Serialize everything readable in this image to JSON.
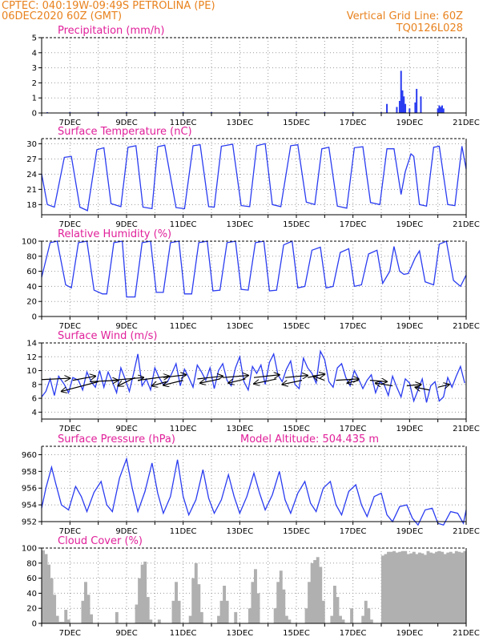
{
  "header": {
    "line1_left": "CPTEC:   040:19W-09:49S  PETROLINA (PE)",
    "line2_left": "06DEC2020 60Z (GMT)",
    "line1_right": "Vertical Grid Line: 60Z",
    "line2_right": "TQ0126L028"
  },
  "colors": {
    "header": "#e8821e",
    "title": "#e0209a",
    "series": "#2a3cf0",
    "cloud": "#b0b0b0",
    "wind_vector": "#000000"
  },
  "x_axis": {
    "start_day": 6,
    "end_day": 21,
    "tick_labels": [
      "7DEC",
      "9DEC",
      "11DEC",
      "13DEC",
      "15DEC",
      "17DEC",
      "19DEC",
      "21DEC"
    ]
  },
  "chart_data": [
    {
      "type": "bar",
      "title": "Precipitation (mm/h)",
      "ylim": [
        0,
        5
      ],
      "yticks": [
        0,
        1,
        2,
        3,
        4,
        5
      ],
      "x": [
        6.2,
        7.0,
        8.0,
        9.0,
        10.0,
        11.0,
        12.0,
        13.0,
        14.0,
        15.0,
        16.0,
        17.0,
        18.0,
        18.2,
        18.55,
        18.65,
        18.7,
        18.75,
        18.8,
        18.85,
        19.0,
        19.2,
        19.25,
        19.4,
        20.0,
        20.05,
        20.1,
        20.15,
        20.2
      ],
      "values": [
        0.05,
        0.05,
        0.05,
        0.05,
        0.05,
        0.05,
        0.05,
        0.05,
        0.05,
        0.05,
        0.05,
        0.05,
        0.05,
        0.6,
        0.4,
        0.8,
        2.8,
        1.5,
        1.1,
        0.6,
        0.3,
        0.7,
        1.6,
        1.1,
        0.3,
        0.5,
        0.4,
        0.5,
        0.3
      ]
    },
    {
      "type": "line",
      "title": "Surface Temperature (nC)",
      "ylim": [
        16,
        31
      ],
      "yticks": [
        18,
        21,
        24,
        27,
        30
      ],
      "x": [
        6.0,
        6.2,
        6.45,
        6.8,
        7.05,
        7.35,
        7.62,
        7.95,
        8.2,
        8.45,
        8.8,
        9.05,
        9.33,
        9.58,
        9.9,
        10.1,
        10.35,
        10.75,
        11.05,
        11.35,
        11.6,
        11.9,
        12.1,
        12.35,
        12.75,
        13.05,
        13.35,
        13.6,
        13.9,
        14.15,
        14.45,
        14.8,
        15.05,
        15.35,
        15.65,
        15.9,
        16.15,
        16.45,
        16.78,
        17.05,
        17.35,
        17.62,
        17.95,
        18.2,
        18.45,
        18.7,
        18.85,
        19.05,
        19.15,
        19.35,
        19.6,
        19.85,
        20.05,
        20.35,
        20.6,
        20.85,
        21.0
      ],
      "values": [
        24.0,
        18.0,
        17.5,
        27.3,
        27.5,
        17.5,
        16.8,
        28.8,
        29.2,
        18.2,
        17.6,
        29.3,
        29.6,
        17.5,
        17.2,
        29.4,
        29.7,
        17.4,
        17.2,
        29.6,
        29.8,
        17.6,
        17.5,
        29.5,
        29.9,
        17.8,
        17.6,
        29.6,
        30.0,
        18.0,
        17.6,
        29.6,
        29.8,
        18.5,
        18.0,
        29.0,
        29.3,
        17.7,
        17.3,
        29.2,
        29.4,
        18.4,
        18.0,
        29.0,
        29.0,
        20.0,
        24.5,
        28.0,
        27.5,
        18.0,
        17.7,
        29.3,
        29.5,
        18.0,
        17.8,
        29.5,
        25.0
      ]
    },
    {
      "type": "line",
      "title": "Relative Humidity (%)",
      "ylim": [
        0,
        100
      ],
      "yticks": [
        0,
        20,
        40,
        60,
        80,
        100
      ],
      "x": [
        6.0,
        6.3,
        6.55,
        6.85,
        7.05,
        7.3,
        7.6,
        7.85,
        8.15,
        8.3,
        8.55,
        8.85,
        9.0,
        9.3,
        9.55,
        9.85,
        10.05,
        10.3,
        10.55,
        10.85,
        11.05,
        11.3,
        11.55,
        11.85,
        12.05,
        12.3,
        12.55,
        12.85,
        13.05,
        13.3,
        13.55,
        13.85,
        14.05,
        14.3,
        14.55,
        14.85,
        15.05,
        15.3,
        15.55,
        15.85,
        16.05,
        16.3,
        16.55,
        16.85,
        17.05,
        17.3,
        17.55,
        17.85,
        18.05,
        18.3,
        18.45,
        18.65,
        18.8,
        18.95,
        19.05,
        19.2,
        19.35,
        19.55,
        19.85,
        20.05,
        20.3,
        20.55,
        20.8,
        21.0
      ],
      "values": [
        52,
        98,
        100,
        42,
        38,
        98,
        100,
        35,
        30,
        30,
        98,
        100,
        26,
        26,
        98,
        100,
        32,
        32,
        98,
        100,
        30,
        30,
        98,
        100,
        34,
        35,
        98,
        100,
        36,
        35,
        98,
        100,
        34,
        35,
        95,
        100,
        38,
        40,
        88,
        92,
        38,
        40,
        85,
        90,
        40,
        42,
        83,
        88,
        44,
        60,
        93,
        60,
        56,
        57,
        65,
        78,
        87,
        46,
        42,
        96,
        100,
        48,
        40,
        55
      ]
    },
    {
      "type": "line",
      "title": "Surface Wind (m/s)",
      "ylim": [
        3,
        14
      ],
      "yticks": [
        4,
        6,
        8,
        10,
        12,
        14
      ],
      "x": [
        6.0,
        6.15,
        6.3,
        6.45,
        6.6,
        6.8,
        6.95,
        7.1,
        7.3,
        7.45,
        7.6,
        7.75,
        7.9,
        8.05,
        8.2,
        8.35,
        8.5,
        8.65,
        8.8,
        8.95,
        9.1,
        9.25,
        9.4,
        9.55,
        9.7,
        9.85,
        10.0,
        10.15,
        10.3,
        10.45,
        10.6,
        10.75,
        10.9,
        11.05,
        11.2,
        11.35,
        11.5,
        11.65,
        11.8,
        11.95,
        12.1,
        12.25,
        12.4,
        12.55,
        12.7,
        12.85,
        13.0,
        13.15,
        13.3,
        13.45,
        13.6,
        13.75,
        13.9,
        14.05,
        14.2,
        14.35,
        14.5,
        14.65,
        14.8,
        14.95,
        15.1,
        15.25,
        15.4,
        15.55,
        15.7,
        15.85,
        16.0,
        16.15,
        16.3,
        16.45,
        16.6,
        16.75,
        16.9,
        17.05,
        17.2,
        17.35,
        17.5,
        17.65,
        17.8,
        17.95,
        18.1,
        18.25,
        18.4,
        18.55,
        18.7,
        18.85,
        19.0,
        19.15,
        19.3,
        19.45,
        19.6,
        19.75,
        19.9,
        20.05,
        20.2,
        20.35,
        20.5,
        20.65,
        20.8,
        20.95
      ],
      "values": [
        6.2,
        7.0,
        8.8,
        6.4,
        9.2,
        8.0,
        6.8,
        9.0,
        8.6,
        7.2,
        9.8,
        8.4,
        7.6,
        10.0,
        7.6,
        9.8,
        8.4,
        6.8,
        10.4,
        8.8,
        7.0,
        9.6,
        12.4,
        7.8,
        8.8,
        7.2,
        10.4,
        9.0,
        8.0,
        8.4,
        9.6,
        11.0,
        7.8,
        10.2,
        9.0,
        7.6,
        10.8,
        9.8,
        8.6,
        10.4,
        7.4,
        10.0,
        11.0,
        8.6,
        7.8,
        10.4,
        12.0,
        8.4,
        7.2,
        10.6,
        9.6,
        10.8,
        8.0,
        11.2,
        12.4,
        9.4,
        8.4,
        10.2,
        11.4,
        8.0,
        7.4,
        11.8,
        10.4,
        9.6,
        8.2,
        12.8,
        11.6,
        8.4,
        7.6,
        10.4,
        11.0,
        9.0,
        7.8,
        10.0,
        8.8,
        7.4,
        8.6,
        9.4,
        6.8,
        8.4,
        8.0,
        6.4,
        9.2,
        7.6,
        6.2,
        8.8,
        8.2,
        5.6,
        7.2,
        8.8,
        5.4,
        7.8,
        8.4,
        5.6,
        6.2,
        9.0,
        7.6,
        9.2,
        10.6,
        8.2
      ],
      "arrows": [
        {
          "x": 6.0,
          "y": 8.7,
          "x2": 7.0,
          "y2": 8.9
        },
        {
          "x": 7.1,
          "y": 8.6,
          "x2": 7.9,
          "y2": 9.2
        },
        {
          "x": 7.7,
          "y": 8.4,
          "x2": 8.7,
          "y2": 8.6
        },
        {
          "x": 8.0,
          "y": 8.4,
          "x2": 6.7,
          "y2": 7.0
        },
        {
          "x": 8.5,
          "y": 8.6,
          "x2": 9.6,
          "y2": 9.0
        },
        {
          "x": 9.3,
          "y": 9.0,
          "x2": 8.7,
          "y2": 7.8
        },
        {
          "x": 9.4,
          "y": 8.6,
          "x2": 10.5,
          "y2": 9.2
        },
        {
          "x": 10.4,
          "y": 8.4,
          "x2": 9.9,
          "y2": 7.8
        },
        {
          "x": 10.3,
          "y": 9.0,
          "x2": 11.1,
          "y2": 9.4
        },
        {
          "x": 11.0,
          "y": 8.6,
          "x2": 10.3,
          "y2": 7.9
        },
        {
          "x": 11.5,
          "y": 8.8,
          "x2": 12.4,
          "y2": 9.2
        },
        {
          "x": 12.3,
          "y": 8.8,
          "x2": 11.6,
          "y2": 8.2
        },
        {
          "x": 12.4,
          "y": 9.0,
          "x2": 13.3,
          "y2": 9.3
        },
        {
          "x": 13.2,
          "y": 8.8,
          "x2": 12.6,
          "y2": 8.2
        },
        {
          "x": 13.5,
          "y": 9.0,
          "x2": 14.4,
          "y2": 9.4
        },
        {
          "x": 14.3,
          "y": 8.8,
          "x2": 13.5,
          "y2": 8.1
        },
        {
          "x": 14.6,
          "y": 9.0,
          "x2": 15.4,
          "y2": 9.3
        },
        {
          "x": 15.2,
          "y": 8.6,
          "x2": 14.5,
          "y2": 8.0
        },
        {
          "x": 15.4,
          "y": 9.0,
          "x2": 16.0,
          "y2": 9.5
        },
        {
          "x": 16.0,
          "y": 8.6,
          "x2": 15.6,
          "y2": 9.2
        },
        {
          "x": 16.4,
          "y": 8.6,
          "x2": 17.2,
          "y2": 8.8
        },
        {
          "x": 17.2,
          "y": 8.6,
          "x2": 16.8,
          "y2": 8.2
        },
        {
          "x": 17.6,
          "y": 8.6,
          "x2": 18.2,
          "y2": 8.4
        },
        {
          "x": 18.4,
          "y": 7.8,
          "x2": 17.8,
          "y2": 8.2
        },
        {
          "x": 18.9,
          "y": 7.8,
          "x2": 19.4,
          "y2": 8.0
        },
        {
          "x": 19.7,
          "y": 7.2,
          "x2": 19.2,
          "y2": 7.6
        },
        {
          "x": 20.0,
          "y": 7.6,
          "x2": 20.4,
          "y2": 8.0
        }
      ]
    },
    {
      "type": "line",
      "title": "Surface Pressure (hPa)",
      "annotation": "Model Altitude: 504.435 m",
      "ylim": [
        952,
        961
      ],
      "yticks": [
        952,
        954,
        956,
        958,
        960
      ],
      "x": [
        6.0,
        6.15,
        6.35,
        6.5,
        6.7,
        6.95,
        7.2,
        7.4,
        7.6,
        7.85,
        8.1,
        8.3,
        8.5,
        8.75,
        9.0,
        9.2,
        9.4,
        9.65,
        9.9,
        10.1,
        10.3,
        10.55,
        10.8,
        11.0,
        11.2,
        11.45,
        11.7,
        11.9,
        12.1,
        12.35,
        12.6,
        12.8,
        13.0,
        13.25,
        13.5,
        13.7,
        13.9,
        14.15,
        14.4,
        14.6,
        14.8,
        15.05,
        15.3,
        15.5,
        15.7,
        15.95,
        16.2,
        16.4,
        16.6,
        16.85,
        17.1,
        17.3,
        17.5,
        17.75,
        18.0,
        18.2,
        18.4,
        18.65,
        18.9,
        19.1,
        19.3,
        19.55,
        19.8,
        20.0,
        20.2,
        20.45,
        20.7,
        20.9,
        21.0
      ],
      "values": [
        953.6,
        956.0,
        958.5,
        956.5,
        954.0,
        953.4,
        956.2,
        955.0,
        953.2,
        955.5,
        956.8,
        954.0,
        953.2,
        957.2,
        959.5,
        956.0,
        953.2,
        955.6,
        959.0,
        955.4,
        953.0,
        955.0,
        959.4,
        955.0,
        952.8,
        954.6,
        958.2,
        954.8,
        953.0,
        954.6,
        957.6,
        955.0,
        953.0,
        955.0,
        957.8,
        955.4,
        953.4,
        955.2,
        958.0,
        954.6,
        953.0,
        955.4,
        956.8,
        954.2,
        953.2,
        956.0,
        956.8,
        954.0,
        952.8,
        955.6,
        956.4,
        954.0,
        952.6,
        955.0,
        955.4,
        952.8,
        952.0,
        953.8,
        954.0,
        952.4,
        951.6,
        953.4,
        953.6,
        951.8,
        951.6,
        953.2,
        953.0,
        951.8,
        953.4
      ]
    },
    {
      "type": "bar",
      "title": "Cloud Cover (%)",
      "ylim": [
        0,
        100
      ],
      "yticks": [
        0,
        20,
        40,
        60,
        80,
        100
      ],
      "x": [
        6.0,
        6.1,
        6.2,
        6.3,
        6.4,
        6.5,
        6.6,
        6.7,
        6.8,
        6.9,
        7.0,
        7.1,
        7.2,
        7.3,
        7.4,
        7.5,
        7.6,
        7.7,
        7.8,
        7.9,
        8.0,
        8.1,
        8.2,
        8.3,
        8.4,
        8.5,
        8.6,
        8.7,
        8.8,
        8.9,
        9.0,
        9.1,
        9.2,
        9.3,
        9.4,
        9.5,
        9.6,
        9.7,
        9.8,
        9.9,
        10.0,
        10.1,
        10.2,
        10.3,
        10.4,
        10.5,
        10.6,
        10.7,
        10.8,
        10.9,
        11.0,
        11.1,
        11.2,
        11.3,
        11.4,
        11.5,
        11.6,
        11.7,
        11.8,
        11.9,
        12.0,
        12.1,
        12.2,
        12.3,
        12.4,
        12.5,
        12.6,
        12.7,
        12.8,
        12.9,
        13.0,
        13.1,
        13.2,
        13.3,
        13.4,
        13.5,
        13.6,
        13.7,
        13.8,
        13.9,
        14.0,
        14.1,
        14.2,
        14.3,
        14.4,
        14.5,
        14.6,
        14.7,
        14.8,
        14.9,
        15.0,
        15.1,
        15.2,
        15.3,
        15.4,
        15.5,
        15.6,
        15.7,
        15.8,
        15.9,
        16.0,
        16.1,
        16.2,
        16.3,
        16.4,
        16.5,
        16.6,
        16.7,
        16.8,
        16.9,
        17.0,
        17.1,
        17.2,
        17.3,
        17.4,
        17.5,
        17.6,
        17.7,
        17.8,
        17.9,
        18.0,
        18.1,
        18.2,
        18.3,
        18.4,
        18.5,
        18.6,
        18.7,
        18.8,
        18.9,
        19.0,
        19.1,
        19.2,
        19.3,
        19.4,
        19.5,
        19.6,
        19.7,
        19.8,
        19.9,
        20.0,
        20.1,
        20.2,
        20.3,
        20.4,
        20.5,
        20.6,
        20.7,
        20.8,
        20.9
      ],
      "values": [
        97,
        92,
        78,
        60,
        38,
        10,
        2,
        2,
        18,
        5,
        0,
        0,
        0,
        0,
        30,
        55,
        38,
        12,
        0,
        0,
        0,
        0,
        0,
        0,
        0,
        0,
        15,
        0,
        0,
        0,
        0,
        0,
        0,
        25,
        60,
        78,
        82,
        35,
        5,
        0,
        0,
        5,
        0,
        0,
        0,
        0,
        30,
        55,
        30,
        0,
        0,
        0,
        10,
        60,
        80,
        52,
        15,
        0,
        0,
        0,
        0,
        0,
        10,
        30,
        50,
        30,
        0,
        0,
        15,
        0,
        0,
        0,
        0,
        20,
        55,
        72,
        40,
        0,
        0,
        0,
        0,
        0,
        20,
        55,
        70,
        45,
        10,
        5,
        0,
        0,
        0,
        0,
        0,
        20,
        55,
        80,
        84,
        88,
        75,
        30,
        0,
        0,
        10,
        50,
        35,
        10,
        5,
        0,
        0,
        20,
        0,
        0,
        0,
        10,
        30,
        20,
        5,
        0,
        0,
        0,
        90,
        92,
        95,
        95,
        96,
        94,
        95,
        96,
        96,
        92,
        93,
        95,
        92,
        94,
        93,
        91,
        96,
        94,
        93,
        95,
        96,
        95,
        92,
        94,
        95,
        93,
        96,
        95,
        94,
        96
      ]
    }
  ]
}
